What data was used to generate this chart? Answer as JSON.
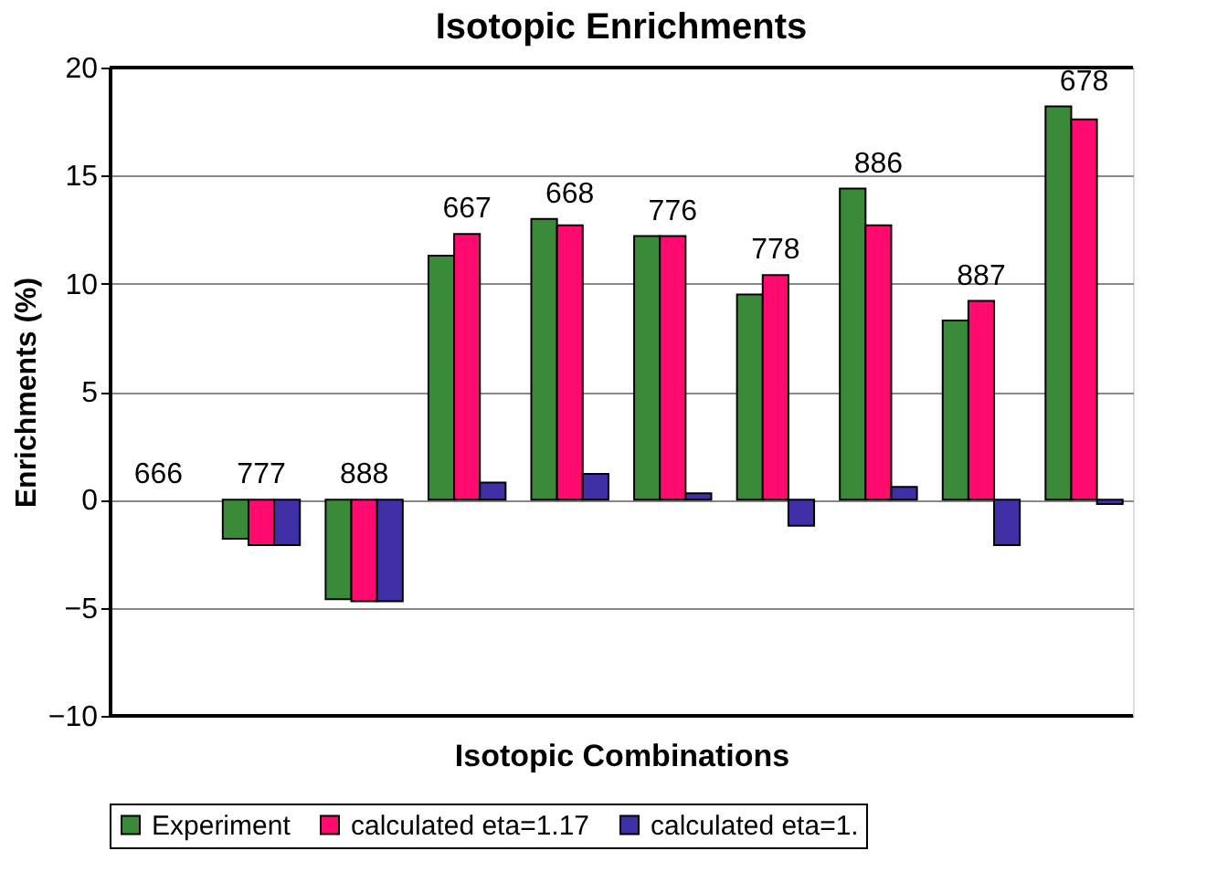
{
  "chart_data": {
    "type": "bar",
    "title": "Isotopic Enrichments",
    "xlabel": "Isotopic Combinations",
    "ylabel": "Enrichments (%)",
    "categories": [
      "666",
      "777",
      "888",
      "667",
      "668",
      "776",
      "778",
      "886",
      "887",
      "678"
    ],
    "series": [
      {
        "name": "Experiment",
        "color": "#3a8a3a",
        "values": [
          0,
          -1.8,
          -4.6,
          11.3,
          13.0,
          12.2,
          9.5,
          14.4,
          8.3,
          18.2
        ]
      },
      {
        "name": "calculated eta=1.17",
        "color": "#ff0a6e",
        "values": [
          0,
          -2.1,
          -4.7,
          12.3,
          12.7,
          12.2,
          10.4,
          12.7,
          9.2,
          17.6
        ]
      },
      {
        "name": "calculated eta=1.",
        "color": "#4030a8",
        "values": [
          0,
          -2.1,
          -4.7,
          0.8,
          1.2,
          0.3,
          -1.2,
          0.6,
          -2.1,
          -0.2
        ]
      }
    ],
    "ylim": [
      -10,
      20
    ],
    "yticks": [
      -10,
      -5,
      0,
      5,
      10,
      15,
      20
    ],
    "grid": "y",
    "legend": "bottom",
    "tick_labels": "y"
  }
}
